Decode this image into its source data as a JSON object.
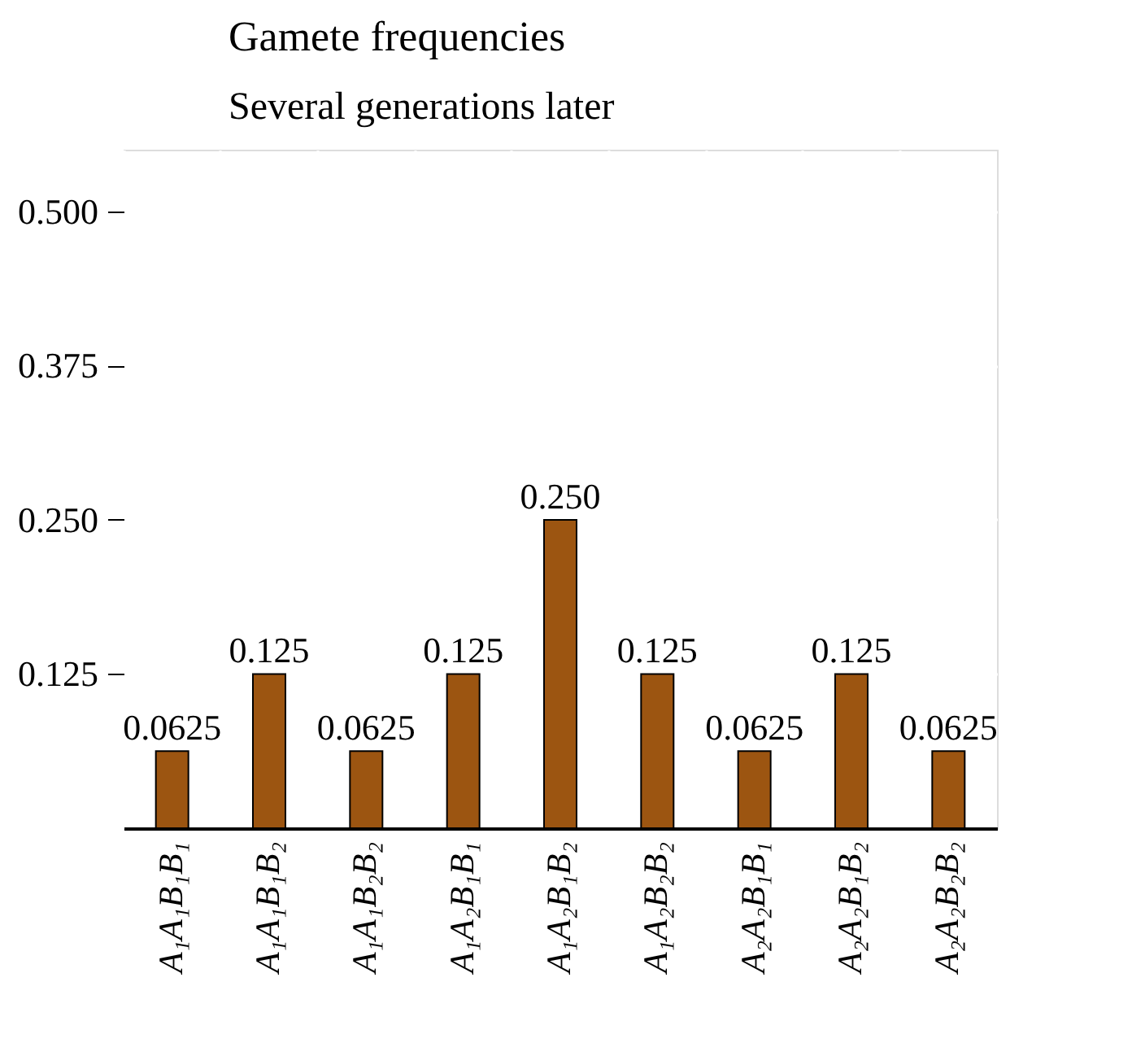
{
  "chart_data": {
    "type": "bar",
    "title": "Gamete frequencies",
    "subtitle": "Several generations later",
    "categories": [
      "A₁A₁B₁B₁",
      "A₁A₁B₁B₂",
      "A₁A₁B₂B₂",
      "A₁A₂B₁B₁",
      "A₁A₂B₁B₂",
      "A₁A₂B₂B₂",
      "A₂A₂B₁B₁",
      "A₂A₂B₁B₂",
      "A₂A₂B₂B₂"
    ],
    "values": [
      0.0625,
      0.125,
      0.0625,
      0.125,
      0.25,
      0.125,
      0.0625,
      0.125,
      0.0625
    ],
    "value_labels": [
      "0.0625",
      "0.125",
      "0.0625",
      "0.125",
      "0.250",
      "0.125",
      "0.0625",
      "0.125",
      "0.0625"
    ],
    "color": "#9c5511",
    "ylim": [
      0,
      0.55
    ],
    "yticks": [
      {
        "value": 0.125,
        "label": "0.125"
      },
      {
        "value": 0.25,
        "label": "0.250"
      },
      {
        "value": 0.375,
        "label": "0.375"
      },
      {
        "value": 0.5,
        "label": "0.500"
      }
    ],
    "grid": true
  }
}
